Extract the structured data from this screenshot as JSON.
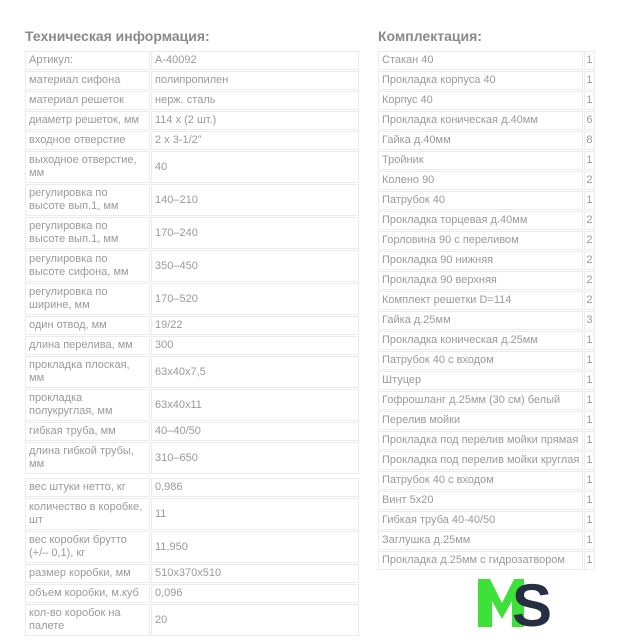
{
  "tech": {
    "title": "Техническая информация:",
    "rows": [
      {
        "label": "Артикул:",
        "value": "А-40092"
      },
      {
        "label": "материал сифона",
        "value": "полипропилен"
      },
      {
        "label": "материал решеток",
        "value": "нерж. сталь"
      },
      {
        "label": "диаметр решеток, мм",
        "value": "114 x (2 шт.)"
      },
      {
        "label": "входное отверстие",
        "value": "2 x 3-1/2\""
      },
      {
        "label": "выходное отверстие, мм",
        "value": "40"
      },
      {
        "label": "регулировка по высоте вып.1, мм",
        "value": "140–210"
      },
      {
        "label": "регулировка по высоте вып.1, мм",
        "value": "170–240"
      },
      {
        "label": "регулировка по высоте сифона, мм",
        "value": "350–450"
      },
      {
        "label": "регулировка по ширине, мм",
        "value": "170–520"
      },
      {
        "label": "один отвод, мм",
        "value": "19/22"
      },
      {
        "label": "длина перелива, мм",
        "value": "300"
      },
      {
        "label": "прокладка плоская, мм",
        "value": "63x40x7,5"
      },
      {
        "label": "прокладка полукруглая, мм",
        "value": "63x40x11"
      },
      {
        "label": "гибкая труба, мм",
        "value": "40–40/50"
      },
      {
        "label": "длина гибкой трубы, мм",
        "value": "310–650"
      },
      {
        "label": "",
        "value": ""
      },
      {
        "label": "вес штуки нетто, кг",
        "value": "0,986"
      },
      {
        "label": "количество в коробке, шт",
        "value": "11"
      },
      {
        "label": "вес коробки брутто (+/– 0,1), кг",
        "value": "11,950"
      },
      {
        "label": "размер коробки, мм",
        "value": "510x370x510"
      },
      {
        "label": "объем коробки, м.куб",
        "value": "0,096"
      },
      {
        "label": "кол-во коробок на палете",
        "value": "20"
      }
    ]
  },
  "kit": {
    "title": "Комплектация:",
    "rows": [
      {
        "name": "Стакан 40",
        "qty": "1"
      },
      {
        "name": "Прокладка корпуса 40",
        "qty": "1"
      },
      {
        "name": "Корпус 40",
        "qty": "1"
      },
      {
        "name": "Прокладка коническая д.40мм",
        "qty": "6"
      },
      {
        "name": "Гайка д.40мм",
        "qty": "8"
      },
      {
        "name": "Тройник",
        "qty": "1"
      },
      {
        "name": "Колено 90",
        "qty": "2"
      },
      {
        "name": "Патрубок 40",
        "qty": "1"
      },
      {
        "name": "Прокладка торцевая д.40мм",
        "qty": "2"
      },
      {
        "name": "Горловина 90 с переливом",
        "qty": "2"
      },
      {
        "name": "Прокладка 90 нижняя",
        "qty": "2"
      },
      {
        "name": "Прокладка 90 верхняя",
        "qty": "2"
      },
      {
        "name": "Комплект решетки D=114",
        "qty": "2"
      },
      {
        "name": "Гайка д.25мм",
        "qty": "3"
      },
      {
        "name": "Прокладка коническая д.25мм",
        "qty": "1"
      },
      {
        "name": "Патрубок 40 с входом",
        "qty": "1"
      },
      {
        "name": "Штуцер",
        "qty": "1"
      },
      {
        "name": "Гофрошланг д.25мм (30 см) белый",
        "qty": "1"
      },
      {
        "name": "Перелив мойки",
        "qty": "1"
      },
      {
        "name": "Прокладка под перелив мойки прямая",
        "qty": "1"
      },
      {
        "name": "Прокладка под перелив мойки круглая",
        "qty": "1"
      },
      {
        "name": "Патрубок 40 с входом",
        "qty": "1"
      },
      {
        "name": "Винт 5x20",
        "qty": "1"
      },
      {
        "name": "Гибкая труба 40-40/50",
        "qty": "1"
      },
      {
        "name": "Заглушка д.25мм",
        "qty": "1"
      },
      {
        "name": "Прокладка д.25мм с гидрозатвором",
        "qty": "1"
      }
    ]
  },
  "logo": {
    "text": "MS",
    "colors": {
      "m": "#3ee03a",
      "s": "#263042"
    }
  }
}
